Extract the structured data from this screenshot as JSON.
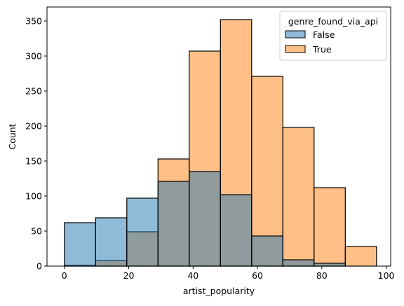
{
  "chart_data": {
    "type": "bar",
    "subtype": "overlapping-histogram",
    "title": "",
    "xlabel": "artist_popularity",
    "ylabel": "Count",
    "xlim": [
      -5.4,
      101.4
    ],
    "ylim": [
      0,
      370
    ],
    "xticks": [
      0,
      20,
      40,
      60,
      80,
      100
    ],
    "yticks": [
      0,
      50,
      100,
      150,
      200,
      250,
      300,
      350
    ],
    "bin_edges": [
      0,
      9.7,
      19.4,
      29.1,
      38.8,
      48.5,
      58.2,
      67.9,
      77.6,
      87.3,
      97
    ],
    "series": [
      {
        "name": "False",
        "color": "#1f77b4",
        "values": [
          62,
          69,
          97,
          121,
          135,
          102,
          43,
          9,
          4,
          0
        ]
      },
      {
        "name": "True",
        "color": "#ff7f0e",
        "values": [
          1,
          8,
          49,
          153,
          307,
          352,
          271,
          198,
          112,
          28
        ]
      }
    ],
    "legend": {
      "title": "genre_found_via_api",
      "placement": "top-right"
    },
    "grid": false
  }
}
